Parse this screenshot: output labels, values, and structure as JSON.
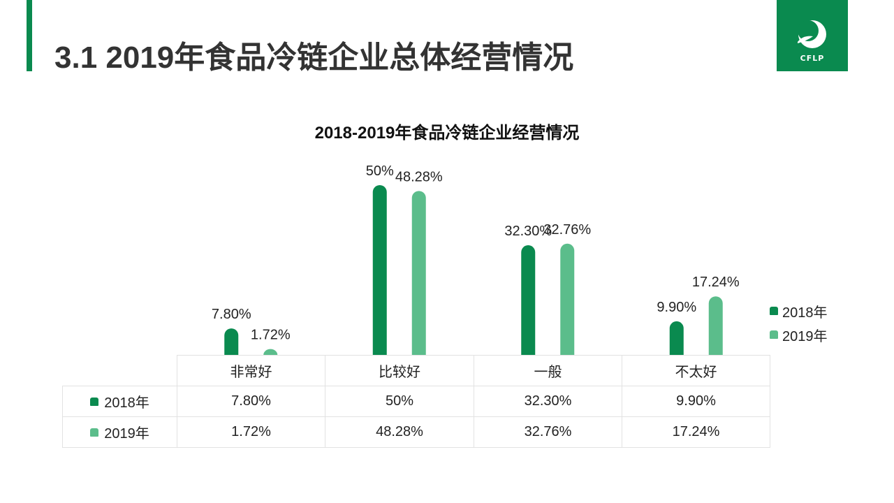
{
  "page": {
    "title": "3.1 2019年食品冷链企业总体经营情况",
    "accent_color": "#0a8a4f",
    "logo_text": "CFLP"
  },
  "chart_data": {
    "type": "bar",
    "title": "2018-2019年食品冷链企业经营情况",
    "categories": [
      "非常好",
      "比较好",
      "一般",
      "不太好"
    ],
    "series": [
      {
        "name": "2018年",
        "values": [
          7.8,
          50,
          32.3,
          9.9
        ],
        "labels": [
          "7.80%",
          "50%",
          "32.30%",
          "9.90%"
        ],
        "color": "#0a8a4f"
      },
      {
        "name": "2019年",
        "values": [
          1.72,
          48.28,
          32.76,
          17.24
        ],
        "labels": [
          "1.72%",
          "48.28%",
          "32.76%",
          "17.24%"
        ],
        "color": "#5bbd8b"
      }
    ],
    "ylim": [
      0,
      50
    ],
    "grid": false,
    "legend_position": "right",
    "data_table": true
  }
}
